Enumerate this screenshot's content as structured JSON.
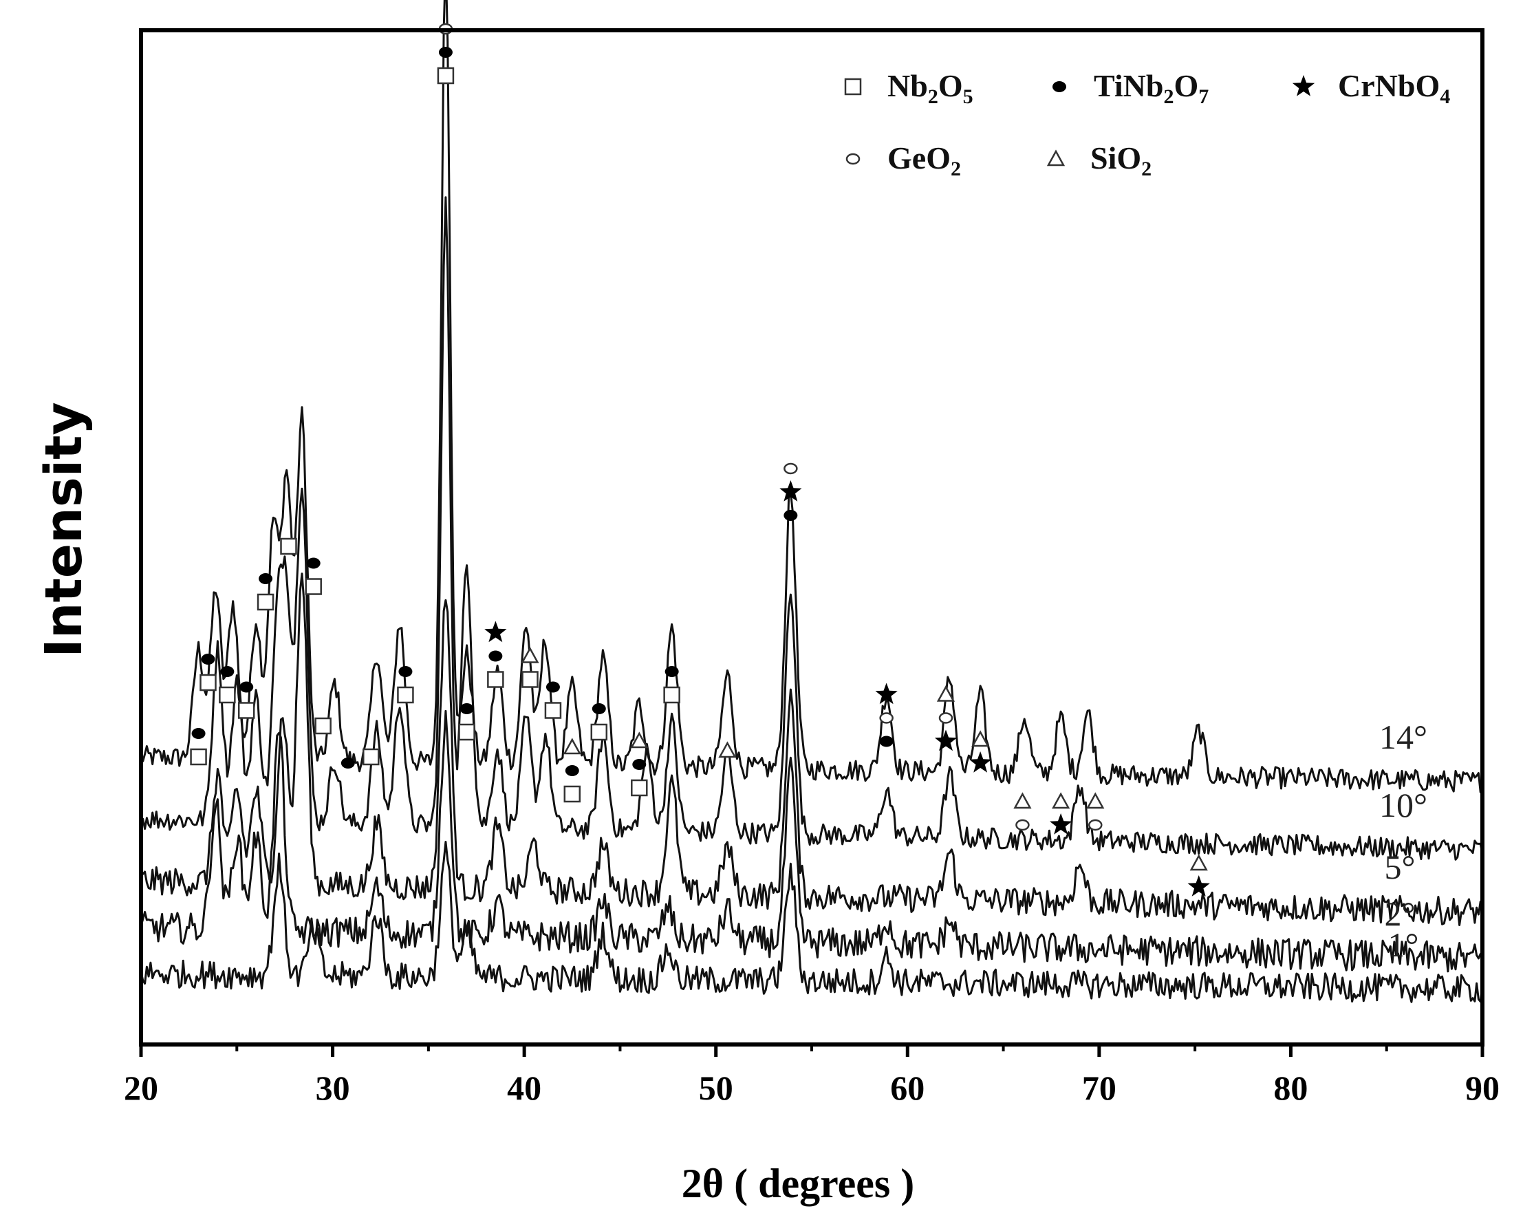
{
  "chart_data": {
    "type": "line",
    "title": "",
    "xlabel": "2θ ( degrees )",
    "ylabel": "Intensity",
    "xlim": [
      20,
      90
    ],
    "xticks": [
      "20",
      "30",
      "40",
      "50",
      "60",
      "70",
      "80",
      "90"
    ],
    "yticks": [],
    "grid": false,
    "legend_position": "top-right",
    "legend": [
      {
        "symbol": "square",
        "formula": [
          [
            "Nb",
            ""
          ],
          [
            "2",
            "sub"
          ],
          [
            "O",
            ""
          ],
          [
            "5",
            "sub"
          ]
        ]
      },
      {
        "symbol": "dot",
        "formula": [
          [
            "TiNb",
            ""
          ],
          [
            "2",
            "sub"
          ],
          [
            "O",
            ""
          ],
          [
            "7",
            "sub"
          ]
        ]
      },
      {
        "symbol": "star",
        "formula": [
          [
            "CrNbO",
            ""
          ],
          [
            "4",
            "sub"
          ]
        ]
      },
      {
        "symbol": "circle",
        "formula": [
          [
            "GeO",
            ""
          ],
          [
            "2",
            "sub"
          ]
        ]
      },
      {
        "symbol": "triangle",
        "formula": [
          [
            "SiO",
            ""
          ],
          [
            "2",
            "sub"
          ]
        ]
      }
    ],
    "series": [
      {
        "name": "14°",
        "baseline": 0.8,
        "baseline_slope": -0.08,
        "noise": 0.07,
        "peaks": [
          [
            23.0,
            0.35
          ],
          [
            23.9,
            0.55
          ],
          [
            24.8,
            0.5
          ],
          [
            26.0,
            0.45
          ],
          [
            26.9,
            0.75
          ],
          [
            27.6,
            0.9
          ],
          [
            28.4,
            1.1
          ],
          [
            30.1,
            0.25
          ],
          [
            32.3,
            0.35
          ],
          [
            33.5,
            0.45
          ],
          [
            35.9,
            2.6
          ],
          [
            37.0,
            0.35
          ],
          [
            38.6,
            0.3
          ],
          [
            40.1,
            0.45
          ],
          [
            41.1,
            0.4
          ],
          [
            42.5,
            0.25
          ],
          [
            44.1,
            0.35
          ],
          [
            46.0,
            0.2
          ],
          [
            47.7,
            0.45
          ],
          [
            50.6,
            0.3
          ],
          [
            53.9,
            0.9
          ],
          [
            58.9,
            0.25
          ],
          [
            62.2,
            0.3
          ],
          [
            63.8,
            0.25
          ],
          [
            66.1,
            0.18
          ],
          [
            68.0,
            0.18
          ],
          [
            69.4,
            0.2
          ],
          [
            75.2,
            0.15
          ]
        ]
      },
      {
        "name": "10°",
        "baseline": 0.6,
        "baseline_slope": -0.1,
        "noise": 0.07,
        "peaks": [
          [
            24.0,
            0.55
          ],
          [
            25.0,
            0.45
          ],
          [
            26.0,
            0.4
          ],
          [
            27.1,
            0.6
          ],
          [
            27.6,
            0.7
          ],
          [
            28.4,
            1.1
          ],
          [
            30.1,
            0.2
          ],
          [
            32.3,
            0.3
          ],
          [
            33.5,
            0.4
          ],
          [
            35.9,
            2.0
          ],
          [
            37.0,
            0.85
          ],
          [
            38.6,
            0.25
          ],
          [
            40.1,
            0.35
          ],
          [
            41.1,
            0.3
          ],
          [
            44.1,
            0.3
          ],
          [
            46.4,
            0.25
          ],
          [
            47.7,
            0.35
          ],
          [
            50.6,
            0.25
          ],
          [
            53.9,
            0.8
          ],
          [
            58.9,
            0.15
          ],
          [
            62.2,
            0.2
          ],
          [
            69.0,
            0.18
          ]
        ]
      },
      {
        "name": "5°",
        "baseline": 0.4,
        "baseline_slope": -0.1,
        "noise": 0.09,
        "peaks": [
          [
            24.0,
            0.35
          ],
          [
            25.0,
            0.3
          ],
          [
            26.0,
            0.3
          ],
          [
            27.4,
            0.55
          ],
          [
            28.4,
            1.0
          ],
          [
            32.3,
            0.2
          ],
          [
            35.9,
            0.95
          ],
          [
            38.6,
            0.2
          ],
          [
            40.5,
            0.15
          ],
          [
            44.1,
            0.15
          ],
          [
            47.7,
            0.35
          ],
          [
            50.6,
            0.15
          ],
          [
            53.9,
            0.65
          ],
          [
            62.2,
            0.15
          ],
          [
            69.0,
            0.12
          ]
        ]
      },
      {
        "name": "2°",
        "baseline": 0.25,
        "baseline_slope": -0.1,
        "noise": 0.1,
        "peaks": [
          [
            23.9,
            0.4
          ],
          [
            25.0,
            0.3
          ],
          [
            26.0,
            0.3
          ],
          [
            27.2,
            0.65
          ],
          [
            32.3,
            0.15
          ],
          [
            35.9,
            0.7
          ],
          [
            38.6,
            0.1
          ],
          [
            44.1,
            0.12
          ],
          [
            47.5,
            0.1
          ],
          [
            50.6,
            0.1
          ],
          [
            53.9,
            0.55
          ],
          [
            58.9,
            0.08
          ],
          [
            62.2,
            0.08
          ]
        ]
      },
      {
        "name": "1°",
        "baseline": 0.1,
        "baseline_slope": -0.05,
        "noise": 0.09,
        "peaks": [
          [
            27.2,
            0.35
          ],
          [
            29.0,
            0.15
          ],
          [
            32.3,
            0.2
          ],
          [
            35.9,
            0.4
          ],
          [
            37.0,
            0.15
          ],
          [
            44.1,
            0.15
          ],
          [
            47.5,
            0.1
          ],
          [
            53.9,
            0.35
          ],
          [
            58.9,
            0.08
          ]
        ]
      }
    ],
    "peak_markers": [
      {
        "x": 23.0,
        "y": 0.8,
        "symbols": [
          "square",
          "dot"
        ]
      },
      {
        "x": 23.5,
        "y": 1.04,
        "symbols": [
          "square",
          "dot"
        ]
      },
      {
        "x": 24.5,
        "y": 1.0,
        "symbols": [
          "square",
          "dot"
        ]
      },
      {
        "x": 25.5,
        "y": 0.95,
        "symbols": [
          "square",
          "dot"
        ]
      },
      {
        "x": 26.5,
        "y": 1.3,
        "symbols": [
          "square",
          "dot"
        ]
      },
      {
        "x": 27.7,
        "y": 1.48,
        "symbols": [
          "square"
        ]
      },
      {
        "x": 29.0,
        "y": 1.35,
        "symbols": [
          "square",
          "dot"
        ]
      },
      {
        "x": 29.5,
        "y": 0.9,
        "symbols": [
          "square"
        ]
      },
      {
        "x": 30.8,
        "y": 0.78,
        "symbols": [
          "dot"
        ]
      },
      {
        "x": 32.0,
        "y": 0.8,
        "symbols": [
          "square"
        ]
      },
      {
        "x": 33.8,
        "y": 1.0,
        "symbols": [
          "square",
          "dot"
        ]
      },
      {
        "x": 35.9,
        "y": 3.0,
        "symbols": [
          "square",
          "dot",
          "circle"
        ]
      },
      {
        "x": 37.0,
        "y": 0.88,
        "symbols": [
          "square",
          "dot"
        ]
      },
      {
        "x": 38.5,
        "y": 1.05,
        "symbols": [
          "square",
          "dot",
          "star"
        ]
      },
      {
        "x": 40.3,
        "y": 1.05,
        "symbols": [
          "square",
          "triangle"
        ]
      },
      {
        "x": 41.5,
        "y": 0.95,
        "symbols": [
          "square",
          "dot"
        ]
      },
      {
        "x": 42.5,
        "y": 0.68,
        "symbols": [
          "square",
          "dot",
          "triangle"
        ]
      },
      {
        "x": 43.9,
        "y": 0.88,
        "symbols": [
          "square",
          "dot"
        ]
      },
      {
        "x": 46.0,
        "y": 0.7,
        "symbols": [
          "square",
          "dot",
          "triangle"
        ]
      },
      {
        "x": 47.7,
        "y": 1.0,
        "symbols": [
          "square",
          "dot"
        ]
      },
      {
        "x": 50.6,
        "y": 0.82,
        "symbols": [
          "triangle"
        ]
      },
      {
        "x": 53.9,
        "y": 1.58,
        "symbols": [
          "dot",
          "star",
          "circle"
        ]
      },
      {
        "x": 58.9,
        "y": 0.85,
        "symbols": [
          "dot",
          "circle",
          "star"
        ]
      },
      {
        "x": 62.0,
        "y": 0.85,
        "symbols": [
          "star",
          "circle",
          "triangle"
        ]
      },
      {
        "x": 63.8,
        "y": 0.78,
        "symbols": [
          "star",
          "triangle"
        ]
      },
      {
        "x": 66.0,
        "y": 0.58,
        "symbols": [
          "circle",
          "triangle"
        ]
      },
      {
        "x": 68.0,
        "y": 0.58,
        "symbols": [
          "star",
          "triangle"
        ]
      },
      {
        "x": 69.8,
        "y": 0.58,
        "symbols": [
          "circle",
          "triangle"
        ]
      },
      {
        "x": 75.2,
        "y": 0.38,
        "symbols": [
          "star",
          "triangle"
        ]
      }
    ]
  }
}
